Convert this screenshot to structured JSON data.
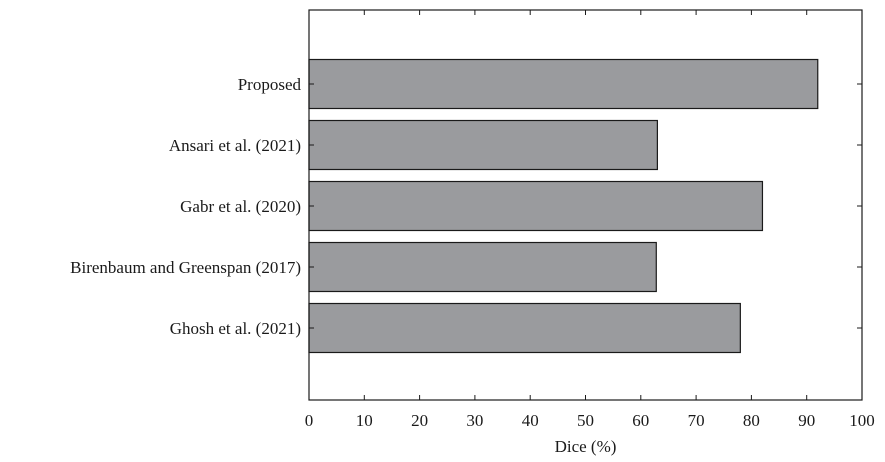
{
  "chart_data": {
    "type": "bar",
    "orientation": "horizontal",
    "categories": [
      "Proposed",
      "Ansari et al. (2021)",
      "Gabr et al. (2020)",
      "Birenbaum and Greenspan (2017)",
      "Ghosh et al. (2021)"
    ],
    "values": [
      92,
      63,
      82,
      62.8,
      78
    ],
    "xlabel": "Dice (%)",
    "ylabel": "",
    "title": "",
    "xlim": [
      0,
      100
    ],
    "xticks": [
      "0",
      "10",
      "20",
      "30",
      "40",
      "50",
      "60",
      "70",
      "80",
      "90",
      "100"
    ],
    "grid": false,
    "legend": "none",
    "bar_color": "#9a9b9e",
    "bar_edge_color": "#1a1a1a"
  }
}
